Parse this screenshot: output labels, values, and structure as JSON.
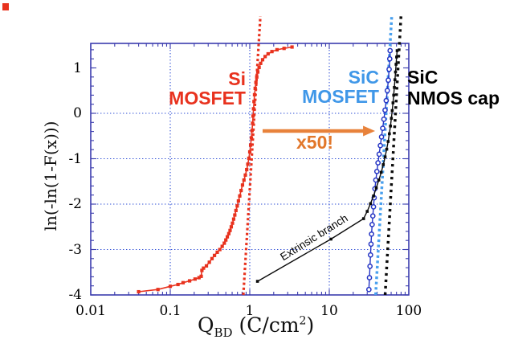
{
  "figure": {
    "background": "#ffffff",
    "corner_marker_color": "#e8321e"
  },
  "axes": {
    "x": {
      "title_q": "Q",
      "title_sub": "BD",
      "title_mid": " (C/cm",
      "title_sup": "2",
      "title_end": ")",
      "tick_labels": [
        "0.01",
        "0.1",
        "1",
        "10",
        "100"
      ],
      "tick_values": [
        0.01,
        0.1,
        1,
        10,
        100
      ],
      "scale": "log",
      "min": 0.01,
      "max": 100
    },
    "y": {
      "title": "ln(-ln(1-F(x)))",
      "tick_labels": [
        "1",
        "0",
        "-1",
        "-2",
        "-3",
        "-4"
      ],
      "tick_values": [
        1,
        0,
        -1,
        -2,
        -3,
        -4
      ],
      "min": -4,
      "max": 1.54
    }
  },
  "annotations": {
    "si": {
      "line1": "Si",
      "line2": "MOSFET",
      "color": "#e8321e"
    },
    "sic": {
      "line1": "SiC",
      "line2": "MOSFET",
      "color": "#3f97e8"
    },
    "nmos": {
      "line1": "SiC",
      "line2": "NMOS cap",
      "color": "#000000"
    },
    "x50": {
      "text": "x50!",
      "color": "#e2772a"
    },
    "extrinsic": {
      "text": "Extrinsic branch",
      "color": "#000000"
    },
    "arrow": {
      "color": "#e8823b",
      "x_start": 1.45,
      "x_end": 37.7,
      "y": -0.39
    }
  },
  "chart_data": {
    "type": "scatter",
    "title": "",
    "xlabel": "Q_BD (C/cm^2)",
    "ylabel": "ln(-ln(1-F(x)))",
    "x_scale": "log",
    "xlim": [
      0.01,
      100
    ],
    "ylim": [
      -4,
      1.54
    ],
    "grid": {
      "x_gridlines": [
        0.1,
        1,
        10
      ],
      "y_gridlines": [
        0,
        -1,
        -2,
        -3
      ],
      "color": "#2f4fd6"
    },
    "frame_color": "#3b3cae",
    "series": [
      {
        "name": "Si MOSFET",
        "color": "#e8321e",
        "marker": "square",
        "marker_size": 4.2,
        "line_width": 1.6,
        "points": [
          [
            0.04,
            -3.93
          ],
          [
            0.07,
            -3.88
          ],
          [
            0.1,
            -3.81
          ],
          [
            0.125,
            -3.77
          ],
          [
            0.145,
            -3.73
          ],
          [
            0.175,
            -3.69
          ],
          [
            0.205,
            -3.65
          ],
          [
            0.23,
            -3.62
          ],
          [
            0.245,
            -3.59
          ],
          [
            0.25,
            -3.46
          ],
          [
            0.262,
            -3.41
          ],
          [
            0.285,
            -3.36
          ],
          [
            0.31,
            -3.28
          ],
          [
            0.335,
            -3.2
          ],
          [
            0.36,
            -3.13
          ],
          [
            0.39,
            -3.06
          ],
          [
            0.42,
            -3.0
          ],
          [
            0.45,
            -2.93
          ],
          [
            0.478,
            -2.86
          ],
          [
            0.5,
            -2.79
          ],
          [
            0.522,
            -2.72
          ],
          [
            0.545,
            -2.65
          ],
          [
            0.565,
            -2.58
          ],
          [
            0.585,
            -2.5
          ],
          [
            0.606,
            -2.42
          ],
          [
            0.627,
            -2.33
          ],
          [
            0.648,
            -2.24
          ],
          [
            0.67,
            -2.14
          ],
          [
            0.695,
            -2.04
          ],
          [
            0.72,
            -1.93
          ],
          [
            0.748,
            -1.82
          ],
          [
            0.778,
            -1.7
          ],
          [
            0.81,
            -1.58
          ],
          [
            0.845,
            -1.47
          ],
          [
            0.88,
            -1.36
          ],
          [
            0.915,
            -1.24
          ],
          [
            0.945,
            -1.12
          ],
          [
            0.975,
            -0.99
          ],
          [
            1.0,
            -0.85
          ],
          [
            1.025,
            -0.7
          ],
          [
            1.048,
            -0.54
          ],
          [
            1.068,
            -0.38
          ],
          [
            1.085,
            -0.22
          ],
          [
            1.1,
            -0.06
          ],
          [
            1.115,
            0.1
          ],
          [
            1.13,
            0.26
          ],
          [
            1.148,
            0.41
          ],
          [
            1.17,
            0.55
          ],
          [
            1.195,
            0.68
          ],
          [
            1.225,
            0.8
          ],
          [
            1.262,
            0.91
          ],
          [
            1.31,
            1.01
          ],
          [
            1.37,
            1.1
          ],
          [
            1.45,
            1.18
          ],
          [
            1.56,
            1.25
          ],
          [
            1.7,
            1.31
          ],
          [
            1.9,
            1.36
          ],
          [
            2.2,
            1.4
          ],
          [
            2.7,
            1.43
          ],
          [
            3.4,
            1.46
          ]
        ]
      },
      {
        "name": "SiC MOSFET",
        "color": "#2434c4",
        "marker": "circle",
        "marker_size": 5.2,
        "line_width": 1.4,
        "points": [
          [
            31.5,
            -3.88
          ],
          [
            32.0,
            -3.62
          ],
          [
            32.5,
            -3.37
          ],
          [
            33.0,
            -3.12
          ],
          [
            33.5,
            -2.88
          ],
          [
            34.0,
            -2.66
          ],
          [
            34.6,
            -2.45
          ],
          [
            35.3,
            -2.26
          ],
          [
            36.0,
            -2.06
          ],
          [
            36.7,
            -1.86
          ],
          [
            37.5,
            -1.66
          ],
          [
            38.5,
            -1.47
          ],
          [
            39.7,
            -1.28
          ],
          [
            41.0,
            -1.09
          ],
          [
            42.4,
            -0.9
          ],
          [
            43.9,
            -0.71
          ],
          [
            45.4,
            -0.52
          ],
          [
            47.0,
            -0.33
          ],
          [
            48.6,
            -0.13
          ],
          [
            50.3,
            0.07
          ],
          [
            52.0,
            0.28
          ],
          [
            53.7,
            0.5
          ],
          [
            55.3,
            0.73
          ],
          [
            56.6,
            0.97
          ],
          [
            57.6,
            1.2
          ],
          [
            58.2,
            1.38
          ]
        ]
      },
      {
        "name": "SiC NMOS cap",
        "color": "#0a0a0a",
        "marker": "square",
        "marker_size": 3.6,
        "line_width": 1.4,
        "points": [
          [
            1.25,
            -3.7
          ],
          [
            10.5,
            -2.77
          ],
          [
            27.0,
            -2.32
          ],
          [
            30.0,
            -2.16
          ],
          [
            33.0,
            -1.99
          ],
          [
            36.0,
            -1.82
          ],
          [
            39.0,
            -1.64
          ],
          [
            42.0,
            -1.47
          ],
          [
            45.0,
            -1.3
          ],
          [
            47.8,
            -1.13
          ],
          [
            50.4,
            -0.96
          ],
          [
            52.8,
            -0.79
          ],
          [
            55.0,
            -0.62
          ],
          [
            57.0,
            -0.45
          ],
          [
            58.8,
            -0.28
          ],
          [
            60.4,
            -0.11
          ],
          [
            61.9,
            0.06
          ],
          [
            63.3,
            0.23
          ],
          [
            64.6,
            0.4
          ],
          [
            65.8,
            0.57
          ],
          [
            67.0,
            0.74
          ],
          [
            68.1,
            0.91
          ],
          [
            69.2,
            1.08
          ],
          [
            70.3,
            1.24
          ],
          [
            71.4,
            1.38
          ]
        ]
      }
    ],
    "fit_lines": [
      {
        "name": "Si MOSFET Weibull fit",
        "color": "#e8321e",
        "x_at_ymin": 0.83,
        "x_at_ytop": 1.36,
        "y_min": -4,
        "y_top": 2.14,
        "dash": [
          3.0,
          3.2
        ],
        "width": 3.2
      },
      {
        "name": "SiC MOSFET Weibull fit",
        "color": "#49a0ee",
        "x_at_ymin": 38.3,
        "x_at_ytop": 61.0,
        "y_min": -4,
        "y_top": 2.14,
        "dash": [
          3.2,
          3.4
        ],
        "width": 3.5
      },
      {
        "name": "SiC NMOS cap Weibull fit",
        "color": "#0a0a0a",
        "x_at_ymin": 50.4,
        "x_at_ytop": 79.8,
        "y_min": -4,
        "y_top": 2.14,
        "dash": [
          3.2,
          4.8
        ],
        "width": 3.5
      }
    ]
  }
}
